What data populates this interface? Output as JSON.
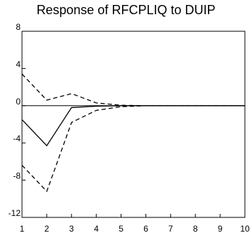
{
  "chart_data": {
    "type": "line",
    "title": "Response of RFCPLIQ to DUIP",
    "xlabel": "",
    "ylabel": "",
    "x": [
      1,
      2,
      3,
      4,
      5,
      6,
      7,
      8,
      9,
      10
    ],
    "xlim": [
      1,
      10
    ],
    "ylim": [
      -12,
      8
    ],
    "xticks": [
      "1",
      "2",
      "3",
      "4",
      "5",
      "6",
      "7",
      "8",
      "9",
      "10"
    ],
    "yticks": [
      8,
      4,
      0,
      -4,
      -8,
      -12
    ],
    "ytick_labels": [
      "8",
      "4",
      "0",
      "-4",
      "-8",
      "-12"
    ],
    "zero_line": true,
    "grid": false,
    "series": [
      {
        "style": "solid",
        "color": "#000000",
        "values": [
          -1.5,
          -4.3,
          -0.2,
          -0.05,
          0.0,
          0.0,
          0.0,
          0.0,
          0.0,
          0.0
        ]
      },
      {
        "style": "dashed",
        "color": "#000000",
        "values": [
          3.4,
          0.6,
          1.3,
          0.3,
          0.05,
          0.0,
          0.0,
          0.0,
          0.0,
          0.0
        ]
      },
      {
        "style": "dashed",
        "color": "#000000",
        "values": [
          -6.4,
          -9.2,
          -1.8,
          -0.5,
          -0.1,
          0.0,
          0.0,
          0.0,
          0.0,
          0.0
        ]
      }
    ]
  }
}
